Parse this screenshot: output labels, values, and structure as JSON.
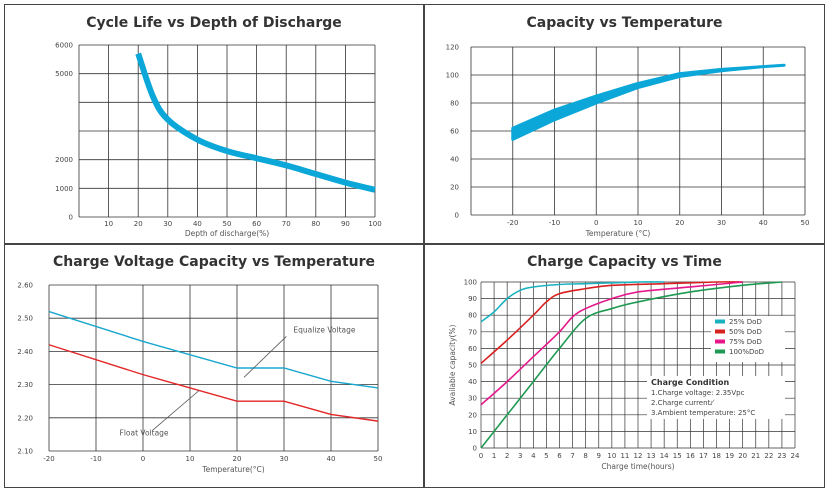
{
  "chart_data": [
    {
      "type": "line",
      "title": "Cycle Life vs Depth of Discharge",
      "xlabel": "Depth of discharge(%)",
      "ylabel": "",
      "xlim": [
        0,
        100
      ],
      "ylim": [
        0,
        6000
      ],
      "x_ticks": [
        "10",
        "20",
        "30",
        "40",
        "50",
        "60",
        "70",
        "80",
        "90",
        "100"
      ],
      "y_ticks": [
        "6000",
        "5000",
        "2000",
        "1000",
        "0"
      ],
      "grid": true,
      "color": "#0aa7d8",
      "series": [
        {
          "x": [
            20,
            25,
            30,
            40,
            50,
            60,
            70,
            80,
            90,
            100
          ],
          "y": [
            5700,
            4200,
            3400,
            2700,
            2300,
            2050,
            1800,
            1500,
            1200,
            950
          ]
        }
      ]
    },
    {
      "type": "area",
      "title": "Capacity vs Temperature",
      "xlabel": "Temperature (°C)",
      "ylabel": "",
      "xlim": [
        -30,
        50
      ],
      "ylim": [
        0,
        120
      ],
      "x_ticks": [
        "-20",
        "-10",
        "0",
        "10",
        "20",
        "30",
        "40",
        "50"
      ],
      "y_ticks": [
        "120",
        "100",
        "80",
        "60",
        "40",
        "20",
        "0"
      ],
      "grid": true,
      "color": "#0aa7d8",
      "series": [
        {
          "name": "upper",
          "x": [
            -20,
            -10,
            0,
            10,
            20,
            30,
            40,
            45
          ],
          "y": [
            62,
            75,
            85,
            94,
            101,
            104,
            106,
            107
          ]
        },
        {
          "name": "lower",
          "x": [
            -20,
            -10,
            0,
            10,
            20,
            30,
            40,
            45
          ],
          "y": [
            54,
            68,
            80,
            91,
            99,
            103,
            106,
            107
          ]
        }
      ]
    },
    {
      "type": "line",
      "title": "Charge Voltage  Capacity  vs  Temperature",
      "xlabel": "Temperature(°C)",
      "ylabel": "",
      "xlim": [
        -20,
        50
      ],
      "ylim": [
        2.1,
        2.6
      ],
      "x_ticks": [
        "-20",
        "-10",
        "0",
        "10",
        "20",
        "30",
        "40",
        "50"
      ],
      "y_ticks": [
        "2.60",
        "2.50",
        "2.40",
        "2.30",
        "2.20",
        "2.10"
      ],
      "grid": true,
      "series": [
        {
          "name": "Equalize  Voltage",
          "color": "#1aa7cf",
          "x": [
            -20,
            0,
            20,
            30,
            40,
            50
          ],
          "y": [
            2.52,
            2.43,
            2.35,
            2.35,
            2.31,
            2.29
          ]
        },
        {
          "name": "Float  Voltage",
          "color": "#e32626",
          "x": [
            -20,
            0,
            20,
            30,
            40,
            50
          ],
          "y": [
            2.42,
            2.33,
            2.25,
            2.25,
            2.21,
            2.19
          ]
        }
      ],
      "annotations": [
        {
          "text": "Equalize  Voltage",
          "color": "#1aa7cf"
        },
        {
          "text": "Float  Voltage",
          "color": "#e32626"
        }
      ]
    },
    {
      "type": "line",
      "title": "Charge  Capacity  vs  Time",
      "xlabel": "Charge time(hours)",
      "ylabel": "Available capacity(%)",
      "xlim": [
        0,
        24
      ],
      "ylim": [
        0,
        100
      ],
      "x_ticks": [
        "0",
        "1",
        "2",
        "3",
        "4",
        "5",
        "6",
        "7",
        "8",
        "9",
        "10",
        "11",
        "12",
        "13",
        "14",
        "15",
        "16",
        "17",
        "18",
        "19",
        "20",
        "21",
        "22",
        "23",
        "24"
      ],
      "y_ticks": [
        "100",
        "90",
        "80",
        "70",
        "60",
        "50",
        "40",
        "30",
        "20",
        "10",
        "0"
      ],
      "grid": true,
      "legend": "right",
      "series": [
        {
          "name": "25%  DoD",
          "color": "#19b2c0",
          "x": [
            0,
            1,
            2,
            3,
            4,
            6,
            8,
            10,
            12,
            14
          ],
          "y": [
            76,
            82,
            90,
            95,
            97,
            98.5,
            99,
            99.5,
            100,
            100
          ]
        },
        {
          "name": "50%  DoD",
          "color": "#d92020",
          "x": [
            0,
            2,
            4,
            5,
            6,
            8,
            10,
            14,
            18,
            20
          ],
          "y": [
            51,
            65,
            80,
            88,
            93,
            96,
            98,
            99,
            100,
            100
          ]
        },
        {
          "name": "75%  DoD",
          "color": "#e5178b",
          "x": [
            0,
            2,
            4,
            6,
            7,
            8,
            10,
            12,
            16,
            20
          ],
          "y": [
            26,
            40,
            55,
            70,
            79,
            84,
            90,
            94,
            97,
            100
          ]
        },
        {
          "name": "100%DoD",
          "color": "#1e9a52",
          "x": [
            0,
            2,
            4,
            6,
            8,
            10,
            12,
            16,
            20,
            23
          ],
          "y": [
            0,
            20,
            40,
            60,
            78,
            84,
            88,
            94,
            98,
            100
          ]
        }
      ],
      "annotation_box": {
        "title": "Charge Condition",
        "lines": [
          "1.Charge voltage: 2.35Vpc",
          "2.Charge current: ̸",
          "3.Ambient temperature: 25°C"
        ]
      }
    }
  ]
}
